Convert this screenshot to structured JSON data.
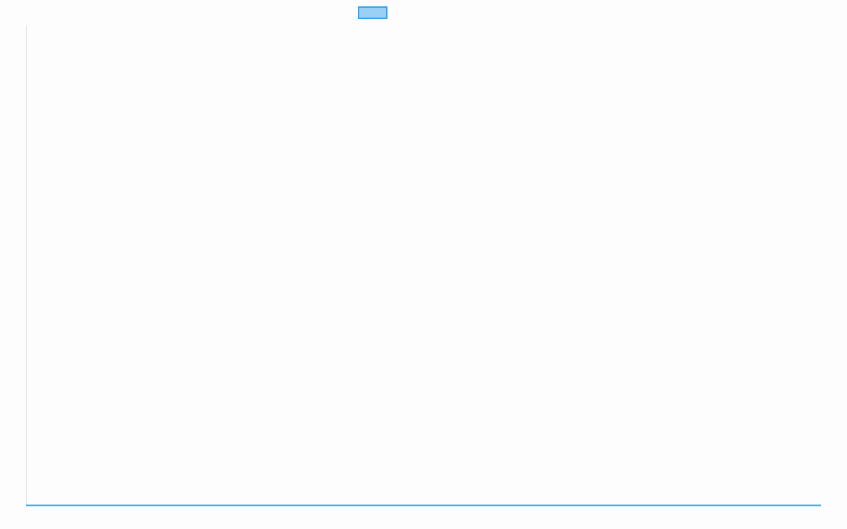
{
  "chart_data": {
    "type": "line",
    "title": "",
    "xlabel": "",
    "ylabel": "",
    "categories": [],
    "series": [
      {
        "label": "",
        "color": "#36a2eb",
        "fill": "#9ad0f5",
        "values": []
      }
    ],
    "legend": "top",
    "grid": false,
    "axis_color": "#e5e5e5"
  }
}
